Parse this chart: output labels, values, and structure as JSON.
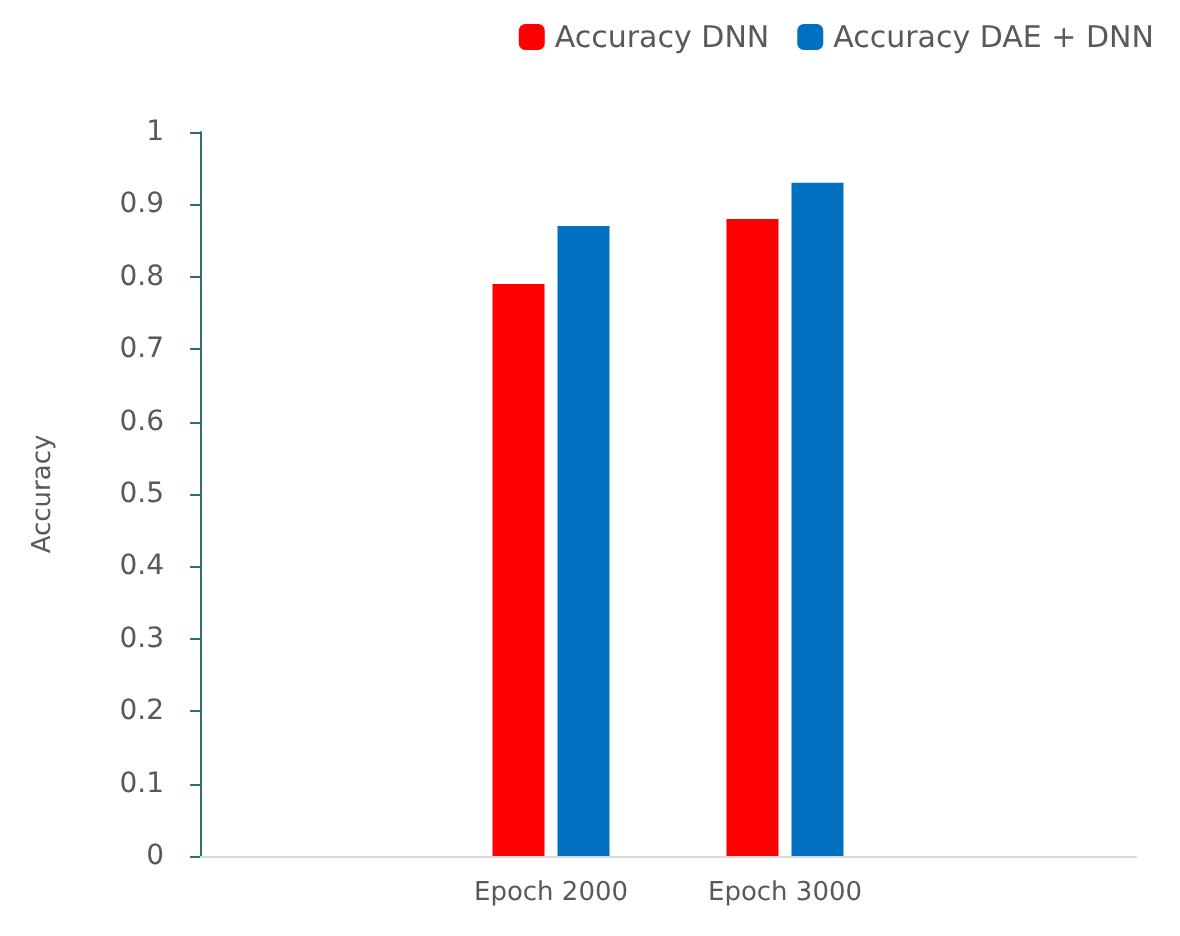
{
  "chart_data": {
    "type": "bar",
    "ylabel": "Accuracy",
    "categories": [
      null,
      "Epoch 2000",
      "Epoch 3000",
      null
    ],
    "series": [
      {
        "name": "Accuracy DNN",
        "color": "#ff0000",
        "values": [
          null,
          0.79,
          0.88,
          null
        ]
      },
      {
        "name": "Accuracy DAE + DNN",
        "color": "#0070c0",
        "values": [
          null,
          0.87,
          0.93,
          null
        ]
      }
    ],
    "ylim": [
      0,
      1
    ],
    "yticks": [
      0,
      0.1,
      0.2,
      0.3,
      0.4,
      0.5,
      0.6,
      0.7,
      0.8,
      0.9,
      1
    ],
    "grid": false,
    "legend": "top right"
  }
}
